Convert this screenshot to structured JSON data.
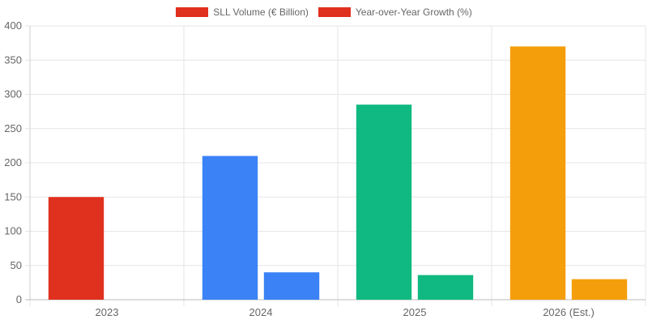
{
  "chart_data": {
    "type": "bar",
    "categories": [
      "2023",
      "2024",
      "2025",
      "2026 (Est.)"
    ],
    "series": [
      {
        "name": "SLL Volume (€ Billion)",
        "legend_color": "#e0301e",
        "values": [
          150,
          210,
          285,
          370
        ],
        "colors": [
          "#e0301e",
          "#3b82f6",
          "#10b981",
          "#f59e0b"
        ]
      },
      {
        "name": "Year-over-Year Growth (%)",
        "legend_color": "#e0301e",
        "values": [
          0,
          40,
          36,
          30
        ],
        "colors": [
          "#e0301e",
          "#3b82f6",
          "#10b981",
          "#f59e0b"
        ]
      }
    ],
    "ylim": [
      0,
      400
    ],
    "yticks": [
      0,
      50,
      100,
      150,
      200,
      250,
      300,
      350,
      400
    ],
    "grid": true,
    "legend_position": "top-center",
    "title": "",
    "xlabel": "",
    "ylabel": ""
  }
}
